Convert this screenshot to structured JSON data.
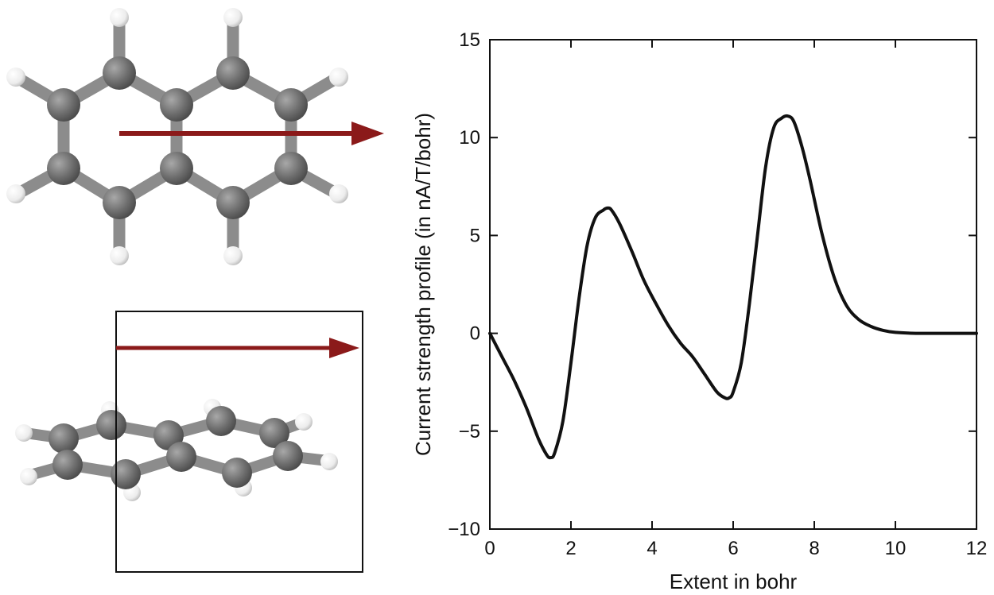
{
  "molecule_views": [
    {
      "view": "top",
      "arrow_color": "#8b1a1a",
      "atom_colors": {
        "carbon": "#6e6e6e",
        "hydrogen": "#f2f2f2",
        "bond": "#8c8c8c"
      }
    },
    {
      "view": "side",
      "arrow_color": "#8b1a1a"
    }
  ],
  "chart_data": {
    "type": "line",
    "title": "",
    "xlabel": "Extent in bohr",
    "ylabel": "Current strength profile (in nA/T/bohr)",
    "xlim": [
      0,
      12
    ],
    "ylim": [
      -10,
      15
    ],
    "xticks": [
      0,
      2,
      4,
      6,
      8,
      10,
      12
    ],
    "yticks": [
      -10,
      -5,
      0,
      5,
      10,
      15
    ],
    "xtick_labels": [
      "0",
      "2",
      "4",
      "6",
      "8",
      "10",
      "12"
    ],
    "ytick_labels": [
      "−10",
      "−5",
      "0",
      "5",
      "10",
      "15"
    ],
    "grid": false,
    "legend": "none",
    "series": [
      {
        "color": "#111111",
        "x": [
          0,
          0.3,
          0.6,
          0.9,
          1.2,
          1.4,
          1.5,
          1.6,
          1.8,
          2.0,
          2.2,
          2.4,
          2.6,
          2.8,
          2.9,
          3.0,
          3.2,
          3.5,
          3.8,
          4.1,
          4.4,
          4.7,
          5.0,
          5.3,
          5.6,
          5.8,
          5.9,
          6.0,
          6.2,
          6.4,
          6.6,
          6.8,
          7.0,
          7.2,
          7.35,
          7.5,
          7.7,
          7.9,
          8.2,
          8.5,
          8.8,
          9.1,
          9.4,
          9.7,
          10.0,
          10.5,
          11.0,
          12.0
        ],
        "y": [
          0,
          -1.2,
          -2.4,
          -3.8,
          -5.4,
          -6.2,
          -6.35,
          -6.1,
          -4.5,
          -1.5,
          1.8,
          4.5,
          5.9,
          6.3,
          6.4,
          6.3,
          5.6,
          4.2,
          2.7,
          1.5,
          0.4,
          -0.5,
          -1.2,
          -2.1,
          -3.0,
          -3.3,
          -3.3,
          -3.0,
          -1.5,
          1.5,
          5.0,
          8.5,
          10.5,
          11.0,
          11.1,
          10.8,
          9.5,
          7.8,
          5.0,
          2.8,
          1.4,
          0.7,
          0.35,
          0.15,
          0.05,
          0.0,
          0.0,
          0.0
        ]
      }
    ]
  }
}
